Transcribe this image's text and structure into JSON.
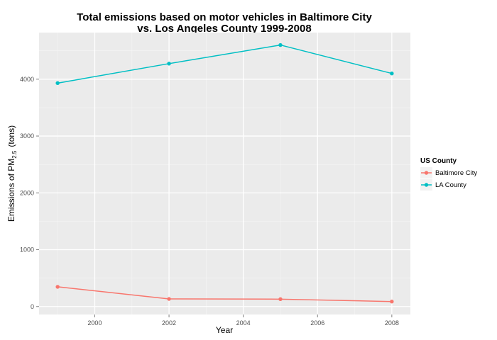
{
  "chart_data": {
    "type": "line",
    "title_line1": "Total emissions based on motor vehicles in Baltimore City",
    "title_line2": "vs. Los Angeles County 1999-2008",
    "xlabel": "Year",
    "ylabel_pre": "Emissions of PM",
    "ylabel_sub": "2.5",
    "ylabel_post": "(tons)",
    "xlim": [
      1998.5,
      2008.5
    ],
    "ylim": [
      -140,
      4820
    ],
    "x_ticks": [
      2000,
      2002,
      2004,
      2006,
      2008
    ],
    "y_ticks": [
      0,
      1000,
      2000,
      3000,
      4000
    ],
    "x": [
      1999,
      2002,
      2005,
      2008
    ],
    "series": [
      {
        "name": "Baltimore City",
        "color": "#F8766D",
        "values": [
          347,
          134,
          130,
          88
        ]
      },
      {
        "name": "LA County",
        "color": "#00BFC4",
        "values": [
          3931,
          4274,
          4601,
          4101
        ]
      }
    ],
    "legend": {
      "title": "US County",
      "position": "right"
    },
    "grid": true,
    "panel_background": "#EBEBEB",
    "grid_color": "#FFFFFF"
  }
}
